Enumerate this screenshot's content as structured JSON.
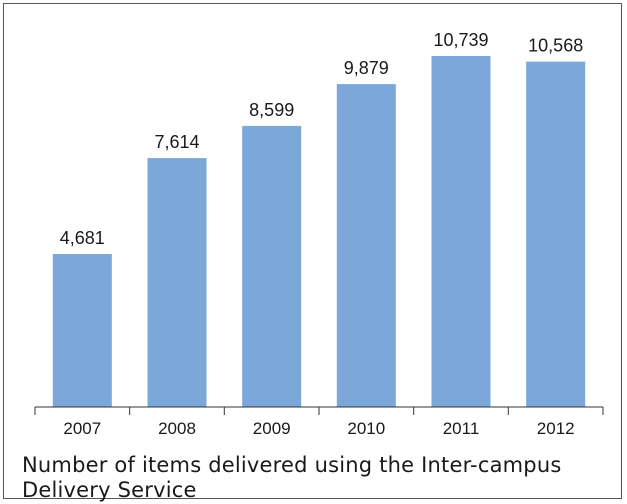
{
  "chart_data": {
    "type": "bar",
    "categories": [
      "2007",
      "2008",
      "2009",
      "2010",
      "2011",
      "2012"
    ],
    "values": [
      4681,
      7614,
      8599,
      9879,
      10739,
      10568
    ],
    "value_labels": [
      "4,681",
      "7,614",
      "8,599",
      "9,879",
      "10,739",
      "10,568"
    ],
    "caption": "Number of items delivered using the Inter-campus Delivery Service",
    "xlabel": "",
    "ylabel": "",
    "ylim": [
      0,
      10739
    ],
    "grid": false,
    "legend": "none",
    "bar_color": "#7ba7d9",
    "axis_color": "#333333",
    "text_color": "#1a1a1a"
  }
}
